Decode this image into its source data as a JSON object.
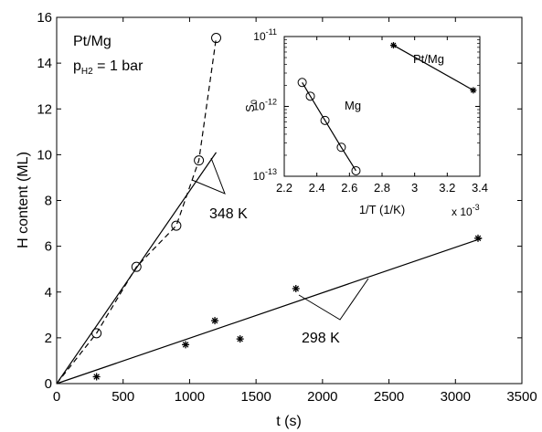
{
  "chart_data": [
    {
      "type": "scatter",
      "xlabel": "t (s)",
      "ylabel": "H content (ML)",
      "xlim": [
        0,
        3500
      ],
      "ylim": [
        0,
        16
      ],
      "xticks": [
        "0",
        "500",
        "1000",
        "1500",
        "2000",
        "2500",
        "3000",
        "3500"
      ],
      "yticks": [
        "0",
        "2",
        "4",
        "6",
        "8",
        "10",
        "12",
        "14",
        "16"
      ],
      "grid": false,
      "annotations": {
        "system": "Pt/Mg",
        "pressure_prefix": "p",
        "pressure_sub": "H2",
        "pressure_suffix": " = 1 bar",
        "label_348": "348 K",
        "label_298": "298 K"
      },
      "series": [
        {
          "marker": "circle",
          "x": [
            300,
            600,
            900,
            1070,
            1200
          ],
          "y": [
            2.2,
            5.1,
            6.9,
            9.75,
            15.1
          ]
        },
        {
          "marker": "star",
          "x": [
            300,
            970,
            1190,
            1380,
            1800,
            3170
          ],
          "y": [
            0.3,
            1.7,
            2.75,
            1.95,
            4.15,
            6.35
          ]
        }
      ],
      "lines": [
        {
          "style": "solid",
          "x": [
            0,
            1200
          ],
          "y": [
            0,
            10.1
          ]
        },
        {
          "style": "solid",
          "x": [
            0,
            3200
          ],
          "y": [
            0,
            6.35
          ]
        },
        {
          "style": "dashed",
          "x": [
            0,
            300,
            600,
            900,
            1070,
            1200
          ],
          "y": [
            0,
            2.2,
            5.1,
            6.9,
            9.75,
            15.1
          ]
        }
      ]
    },
    {
      "type": "line",
      "xlabel": "1/T (1/K)",
      "ylabel_main": "S",
      "ylabel_sub": "0",
      "xlim": [
        2.2,
        3.4
      ],
      "ylim": [
        1e-13,
        1e-11
      ],
      "yscale": "log",
      "xticks": [
        "2.2",
        "2.4",
        "2.6",
        "2.8",
        "3",
        "3.2",
        "3.4"
      ],
      "yticks": [
        {
          "base": "10",
          "exp": "-13",
          "value": 1e-13
        },
        {
          "base": "10",
          "exp": "-12",
          "value": 1e-12
        },
        {
          "base": "10",
          "exp": "-11",
          "value": 1e-11
        }
      ],
      "x_multiplier_prefix": "x 10",
      "x_multiplier_exp": "-3",
      "series": [
        {
          "name": "Mg",
          "marker": "circle",
          "x": [
            2.31,
            2.36,
            2.45,
            2.55,
            2.64
          ],
          "y": [
            2.2e-12,
            1.4e-12,
            6.3e-13,
            2.6e-13,
            1.2e-13
          ]
        },
        {
          "name": "Pt/Mg",
          "marker": "star",
          "x": [
            2.87,
            3.36
          ],
          "y": [
            7.5e-12,
            1.7e-12
          ]
        }
      ]
    }
  ]
}
